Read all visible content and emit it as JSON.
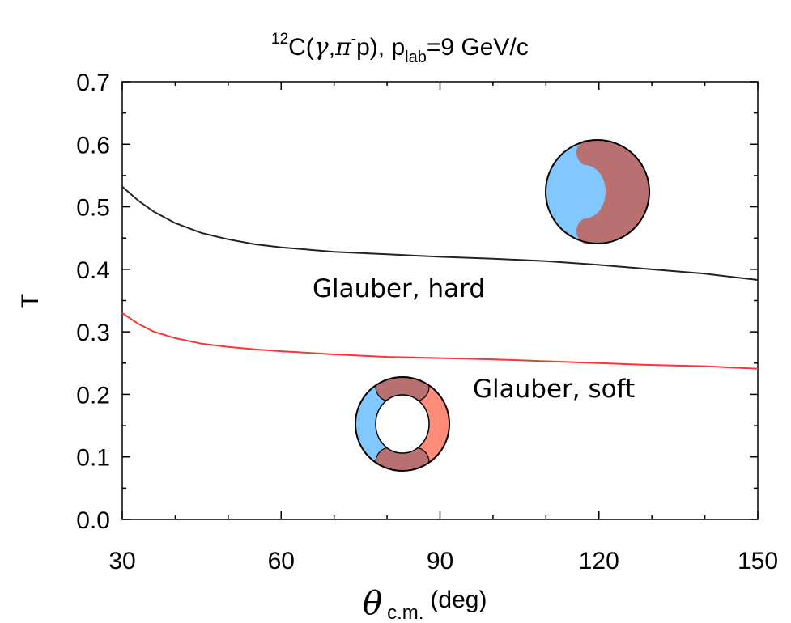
{
  "chart_data": {
    "type": "line",
    "title": {
      "sup": "12",
      "main": "C(",
      "gamma": "γ",
      "comma": ",",
      "pi": "π",
      "pisup": "-",
      "rest": "p), p",
      "lab": "lab",
      "end": "=9 GeV/c"
    },
    "xlabel": {
      "theta": "θ",
      "sub": "c.m.",
      "unit": "(deg)"
    },
    "ylabel": "T",
    "xlim": [
      30,
      150
    ],
    "ylim": [
      0.0,
      0.7
    ],
    "xticks": [
      "30",
      "60",
      "90",
      "120",
      "150"
    ],
    "yticks": [
      "0.0",
      "0.1",
      "0.2",
      "0.3",
      "0.4",
      "0.5",
      "0.6",
      "0.7"
    ],
    "grid": false,
    "series": [
      {
        "name": "Glauber, hard",
        "color": "#222222",
        "x": [
          30,
          33,
          36,
          40,
          45,
          50,
          55,
          60,
          70,
          80,
          90,
          100,
          110,
          120,
          130,
          140,
          150
        ],
        "y": [
          0.532,
          0.51,
          0.492,
          0.474,
          0.458,
          0.448,
          0.44,
          0.435,
          0.428,
          0.424,
          0.42,
          0.417,
          0.413,
          0.407,
          0.4,
          0.393,
          0.383
        ]
      },
      {
        "name": "Glauber, soft",
        "color": "#ff3333",
        "x": [
          30,
          33,
          36,
          40,
          45,
          50,
          55,
          60,
          70,
          80,
          90,
          100,
          110,
          120,
          130,
          140,
          150
        ],
        "y": [
          0.33,
          0.313,
          0.3,
          0.29,
          0.281,
          0.276,
          0.272,
          0.269,
          0.264,
          0.26,
          0.258,
          0.256,
          0.253,
          0.25,
          0.247,
          0.245,
          0.241
        ]
      }
    ],
    "annotations": [
      {
        "text": "Glauber, hard",
        "series": 0
      },
      {
        "text": "Glauber, soft",
        "series": 1
      }
    ],
    "colors": {
      "hard_blue": "#80c8ff",
      "hard_mauve": "#b87070",
      "soft_salmon": "#ff8c78"
    }
  }
}
